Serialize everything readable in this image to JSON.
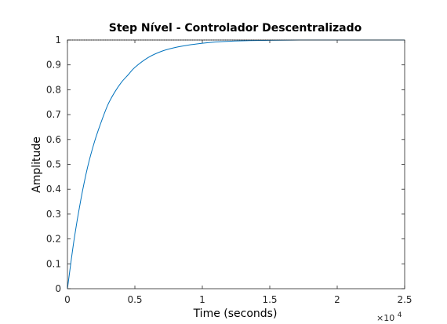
{
  "chart_data": {
    "type": "line",
    "title": "Step Nível - Controlador Descentralizado",
    "xlabel": "Time (seconds)",
    "ylabel": "Amplitude",
    "x_multiplier_label": "×10",
    "x_multiplier_exponent": "4",
    "xlim": [
      0,
      2.5
    ],
    "ylim": [
      0,
      1
    ],
    "x_ticks": [
      "0",
      "0.5",
      "1",
      "1.5",
      "2",
      "2.5"
    ],
    "y_ticks": [
      "0",
      "0.1",
      "0.2",
      "0.3",
      "0.4",
      "0.5",
      "0.6",
      "0.7",
      "0.8",
      "0.9",
      "1"
    ],
    "grid": false,
    "series": [
      {
        "color": "#0072bd",
        "x": [
          0,
          0.05,
          0.1,
          0.15,
          0.2,
          0.25,
          0.3,
          0.35,
          0.4,
          0.45,
          0.5,
          0.6,
          0.7,
          0.8,
          0.9,
          1.0,
          1.1,
          1.2,
          1.3,
          1.4,
          1.5,
          1.75,
          2.0,
          2.25,
          2.5
        ],
        "y": [
          0,
          0.2,
          0.36,
          0.49,
          0.59,
          0.67,
          0.74,
          0.79,
          0.83,
          0.86,
          0.89,
          0.93,
          0.955,
          0.97,
          0.98,
          0.987,
          0.992,
          0.995,
          0.997,
          0.998,
          0.999,
          1.0,
          1.0,
          1.0,
          1.0
        ]
      }
    ],
    "reference_line": {
      "y": 1,
      "style": "dotted",
      "color": "#000000"
    }
  }
}
